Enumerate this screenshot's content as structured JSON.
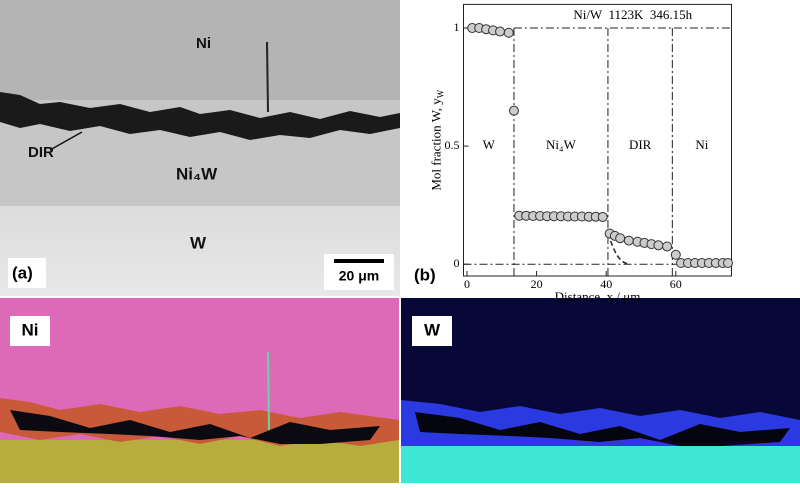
{
  "panel_a": {
    "label": "(a)",
    "layers": [
      "Ni",
      "DIR",
      "Ni₄W",
      "W"
    ],
    "scale_bar": "20 μm"
  },
  "maps": [
    "Ni",
    "W"
  ],
  "chart_data": {
    "type": "scatter",
    "panel_label": "(b)",
    "title": "Ni/W  1123K  346.15h",
    "xlabel": "Distance, x / μm",
    "ylabel": "Mol fraction W, y",
    "ylabel_sub": "W",
    "regions": [
      "W",
      "Ni₄W",
      "DIR",
      "Ni"
    ],
    "boundaries": [
      13.5,
      40.5,
      59
    ],
    "xlim": [
      -1,
      76
    ],
    "ylim": [
      -0.05,
      1.1
    ],
    "xticks": [
      0,
      20,
      40,
      60
    ],
    "yticks": [
      0,
      0.5,
      1
    ],
    "series": [
      {
        "name": "yW",
        "color": "#cccccc",
        "x": [
          1.5,
          3.5,
          5.5,
          7.5,
          9.5,
          12,
          13.5,
          15,
          17,
          19,
          21,
          23,
          25,
          27,
          29,
          31,
          33,
          35,
          37,
          39,
          41,
          42.5,
          44,
          46.5,
          49,
          51,
          53,
          55,
          57.5,
          60,
          61.5,
          63.5,
          65.5,
          67.5,
          69.5,
          71.5,
          73.5,
          75
        ],
        "values": [
          1.0,
          1.0,
          0.995,
          0.99,
          0.985,
          0.98,
          0.65,
          0.205,
          0.205,
          0.204,
          0.204,
          0.203,
          0.203,
          0.203,
          0.202,
          0.202,
          0.202,
          0.201,
          0.201,
          0.2,
          0.13,
          0.12,
          0.11,
          0.1,
          0.095,
          0.09,
          0.085,
          0.08,
          0.075,
          0.04,
          0.005,
          0.005,
          0.005,
          0.005,
          0.005,
          0.005,
          0.005,
          0.005
        ]
      }
    ]
  }
}
